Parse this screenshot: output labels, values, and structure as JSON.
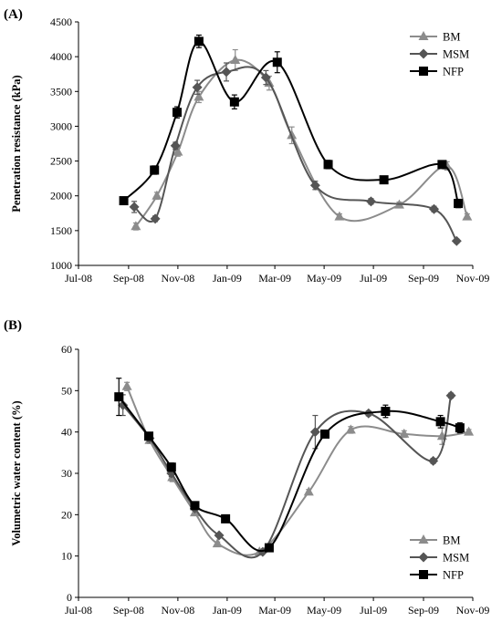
{
  "chart_data": [
    {
      "type": "line",
      "panel_label": "(A)",
      "ylabel": "Penetration resistance (kPa)",
      "xlabel": "",
      "ylim": [
        1000,
        4500
      ],
      "yticks": [
        1000,
        1500,
        2000,
        2500,
        3000,
        3500,
        4000,
        4500
      ],
      "xlim": [
        "2008-07-01",
        "2009-11-01"
      ],
      "xtick_labels": [
        "Jul-08",
        "Sep-08",
        "Nov-08",
        "Jan-09",
        "Mar-09",
        "May-09",
        "Jul-09",
        "Sep-09",
        "Nov-09"
      ],
      "xtick_dates": [
        "2008-07-01",
        "2008-09-01",
        "2008-11-01",
        "2009-01-01",
        "2009-03-01",
        "2009-05-01",
        "2009-07-01",
        "2009-09-01",
        "2009-11-01"
      ],
      "legend_position": "top-right",
      "series": [
        {
          "name": "BM",
          "marker": "triangle",
          "color": "#8c8c8c",
          "points": [
            {
              "x": "2008-09-10",
              "y": 1560,
              "err": 50
            },
            {
              "x": "2008-10-06",
              "y": 2000,
              "err": 50
            },
            {
              "x": "2008-11-01",
              "y": 2630,
              "err": 60
            },
            {
              "x": "2008-11-27",
              "y": 3420,
              "err": 80
            },
            {
              "x": "2009-01-11",
              "y": 3950,
              "err": 150
            },
            {
              "x": "2009-02-22",
              "y": 3620,
              "err": 100
            },
            {
              "x": "2009-03-22",
              "y": 2870,
              "err": 120
            },
            {
              "x": "2009-05-20",
              "y": 1700,
              "err": 40
            },
            {
              "x": "2009-08-02",
              "y": 1870,
              "err": 40
            },
            {
              "x": "2009-09-30",
              "y": 2430,
              "err": 60
            },
            {
              "x": "2009-10-25",
              "y": 1700,
              "err": 40
            }
          ]
        },
        {
          "name": "MSM",
          "marker": "diamond",
          "color": "#555555",
          "points": [
            {
              "x": "2008-09-08",
              "y": 1840,
              "err": 80
            },
            {
              "x": "2008-10-04",
              "y": 1670,
              "err": 40
            },
            {
              "x": "2008-10-29",
              "y": 2720,
              "err": 50
            },
            {
              "x": "2008-11-25",
              "y": 3560,
              "err": 100
            },
            {
              "x": "2008-12-31",
              "y": 3780,
              "err": 130
            },
            {
              "x": "2009-02-18",
              "y": 3700,
              "err": 100
            },
            {
              "x": "2009-04-20",
              "y": 2150,
              "err": 60
            },
            {
              "x": "2009-06-28",
              "y": 1920,
              "err": 40
            },
            {
              "x": "2009-09-14",
              "y": 1810,
              "err": 40
            },
            {
              "x": "2009-10-12",
              "y": 1350,
              "err": 30
            }
          ]
        },
        {
          "name": "NFP",
          "marker": "square",
          "color": "#000000",
          "points": [
            {
              "x": "2008-08-26",
              "y": 1930,
              "err": 30
            },
            {
              "x": "2008-10-03",
              "y": 2370,
              "err": 60
            },
            {
              "x": "2008-10-31",
              "y": 3200,
              "err": 80
            },
            {
              "x": "2008-11-27",
              "y": 4220,
              "err": 90
            },
            {
              "x": "2009-01-10",
              "y": 3350,
              "err": 100
            },
            {
              "x": "2009-03-04",
              "y": 3920,
              "err": 150
            },
            {
              "x": "2009-05-06",
              "y": 2450,
              "err": 60
            },
            {
              "x": "2009-07-14",
              "y": 2230,
              "err": 40
            },
            {
              "x": "2009-09-24",
              "y": 2450,
              "err": 50
            },
            {
              "x": "2009-10-14",
              "y": 1890,
              "err": 60
            }
          ]
        }
      ]
    },
    {
      "type": "line",
      "panel_label": "(B)",
      "ylabel": "Volumetric water content (%)",
      "xlabel": "",
      "ylim": [
        0,
        60
      ],
      "yticks": [
        0,
        10,
        20,
        30,
        40,
        50,
        60
      ],
      "xlim": [
        "2008-07-01",
        "2009-11-01"
      ],
      "xtick_labels": [
        "Jul-08",
        "Sep-08",
        "Nov-08",
        "Jan-09",
        "Mar-09",
        "May-09",
        "Jul-09",
        "Sep-09",
        "Nov-09"
      ],
      "xtick_dates": [
        "2008-07-01",
        "2008-09-01",
        "2008-11-01",
        "2009-01-01",
        "2009-03-01",
        "2009-05-01",
        "2009-07-01",
        "2009-09-01",
        "2009-11-01"
      ],
      "legend_position": "bottom-right",
      "series": [
        {
          "name": "BM",
          "marker": "triangle",
          "color": "#8c8c8c",
          "points": [
            {
              "x": "2008-08-30",
              "y": 51,
              "err": 1.0
            },
            {
              "x": "2008-09-27",
              "y": 38,
              "err": 0.8
            },
            {
              "x": "2008-10-25",
              "y": 29,
              "err": 1.0
            },
            {
              "x": "2008-11-22",
              "y": 20.5,
              "err": 0.6
            },
            {
              "x": "2008-12-20",
              "y": 13,
              "err": 0.4
            },
            {
              "x": "2009-02-10",
              "y": 11,
              "err": 0.4
            },
            {
              "x": "2009-04-12",
              "y": 25.5,
              "err": 0.6
            },
            {
              "x": "2009-06-03",
              "y": 40.5,
              "err": 0.8
            },
            {
              "x": "2009-08-08",
              "y": 39.5,
              "err": 0.8
            },
            {
              "x": "2009-09-24",
              "y": 39.0,
              "err": 2.0
            },
            {
              "x": "2009-10-27",
              "y": 40,
              "err": 0.6
            }
          ]
        },
        {
          "name": "MSM",
          "marker": "diamond",
          "color": "#555555",
          "points": [
            {
              "x": "2008-08-25",
              "y": 46.5,
              "err": 2.5
            },
            {
              "x": "2008-09-27",
              "y": 38.5,
              "err": 0.8
            },
            {
              "x": "2008-10-24",
              "y": 30,
              "err": 0.8
            },
            {
              "x": "2008-11-22",
              "y": 21.5,
              "err": 0.6
            },
            {
              "x": "2008-12-22",
              "y": 15,
              "err": 0.4
            },
            {
              "x": "2009-02-14",
              "y": 11,
              "err": 0.4
            },
            {
              "x": "2009-04-20",
              "y": 40,
              "err": 4.0
            },
            {
              "x": "2009-06-25",
              "y": 44.5,
              "err": 0.6
            },
            {
              "x": "2009-09-13",
              "y": 33,
              "err": 0.6
            },
            {
              "x": "2009-10-05",
              "y": 48.8,
              "err": 0.6
            }
          ]
        },
        {
          "name": "NFP",
          "marker": "square",
          "color": "#000000",
          "points": [
            {
              "x": "2008-08-20",
              "y": 48.5,
              "err": 4.5
            },
            {
              "x": "2008-09-26",
              "y": 39,
              "err": 0.8
            },
            {
              "x": "2008-10-24",
              "y": 31.5,
              "err": 1.0
            },
            {
              "x": "2008-11-22",
              "y": 22.2,
              "err": 0.6
            },
            {
              "x": "2008-12-30",
              "y": 19,
              "err": 0.6
            },
            {
              "x": "2009-02-22",
              "y": 12,
              "err": 0.5
            },
            {
              "x": "2009-05-02",
              "y": 39.5,
              "err": 0.8
            },
            {
              "x": "2009-07-16",
              "y": 45,
              "err": 1.5
            },
            {
              "x": "2009-09-22",
              "y": 42.5,
              "err": 1.5
            },
            {
              "x": "2009-10-16",
              "y": 41,
              "err": 1.2
            }
          ]
        }
      ]
    }
  ]
}
